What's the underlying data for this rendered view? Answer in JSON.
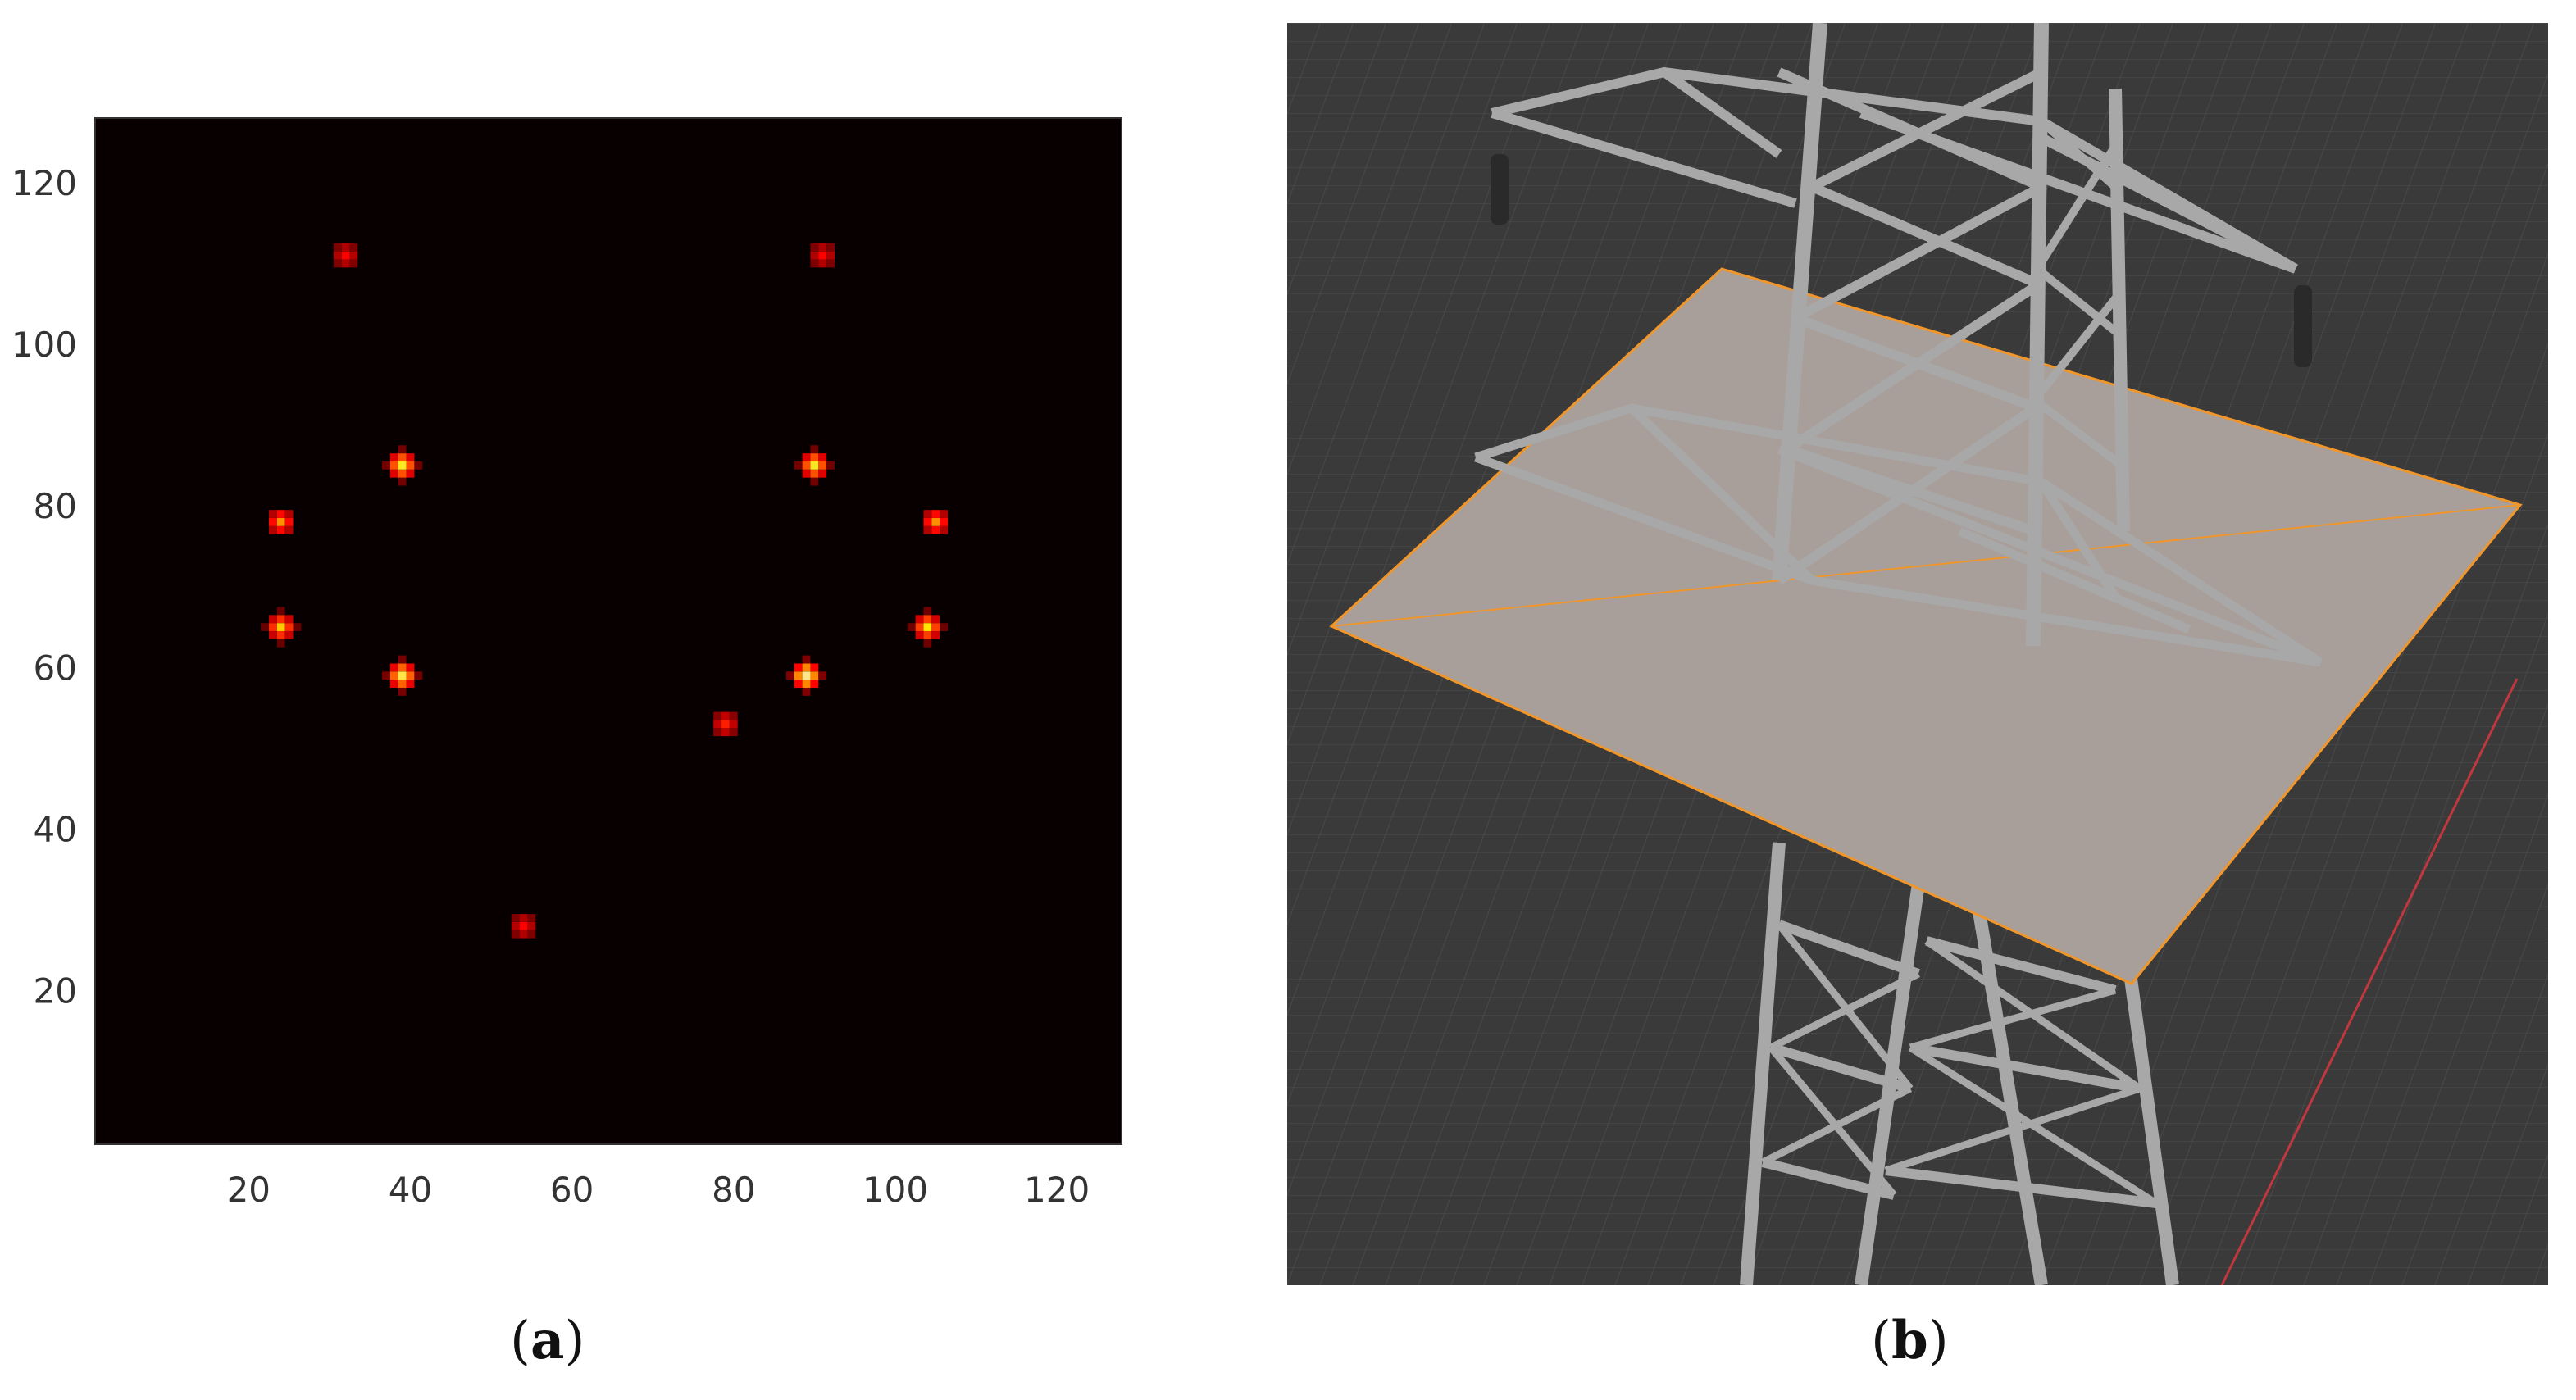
{
  "figure": {
    "captions": {
      "a": "a",
      "b": "b"
    }
  },
  "chart_data": {
    "type": "heatmap",
    "title": "",
    "xlabel": "",
    "ylabel": "",
    "xlim": [
      1,
      128
    ],
    "ylim": [
      1,
      128
    ],
    "x_ticks": [
      20,
      40,
      60,
      80,
      100,
      120
    ],
    "y_ticks": [
      20,
      40,
      60,
      80,
      100,
      120
    ],
    "colormap": "hot",
    "background_color": "#080000",
    "grid": false,
    "hotspots": [
      {
        "x": 39,
        "y": 85,
        "intensity": 0.85
      },
      {
        "x": 90,
        "y": 85,
        "intensity": 0.85
      },
      {
        "x": 24,
        "y": 78,
        "intensity": 0.65
      },
      {
        "x": 105,
        "y": 78,
        "intensity": 0.65
      },
      {
        "x": 24,
        "y": 65,
        "intensity": 0.75
      },
      {
        "x": 104,
        "y": 65,
        "intensity": 0.8
      },
      {
        "x": 39,
        "y": 59,
        "intensity": 0.9
      },
      {
        "x": 89,
        "y": 59,
        "intensity": 1.0
      },
      {
        "x": 32,
        "y": 111,
        "intensity": 0.4
      },
      {
        "x": 91,
        "y": 111,
        "intensity": 0.4
      },
      {
        "x": 79,
        "y": 53,
        "intensity": 0.45
      },
      {
        "x": 54,
        "y": 28,
        "intensity": 0.4
      }
    ]
  },
  "scene_3d": {
    "background_color": "#3a3a3a",
    "grid_color": "#4a4a4a",
    "plane_color": "#a89e9a",
    "selection_outline_color": "#f0962a",
    "x_axis_color": "#c0383f",
    "tower_color": "#a8a8a8"
  }
}
